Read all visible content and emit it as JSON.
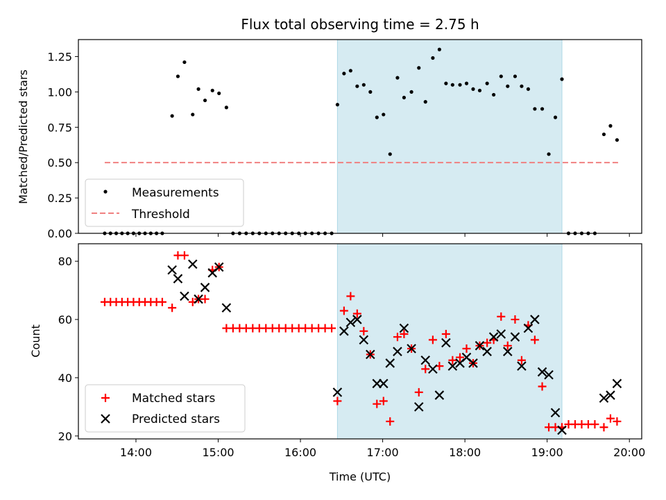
{
  "title": "Flux total observing time = 2.75 h",
  "colors": {
    "measurement": "#000000",
    "threshold": "#f08080",
    "matched": "#ff0000",
    "predicted": "#000000",
    "span": "#add8e6"
  },
  "chart_data": [
    {
      "type": "scatter",
      "panel": "top",
      "title": "Flux total observing time = 2.75 h",
      "xlabel": "",
      "ylabel": "Matched/Predicted stars",
      "xlim": [
        13.3,
        20.15
      ],
      "ylim": [
        0,
        1.37
      ],
      "yticks": [
        0.0,
        0.25,
        0.5,
        0.75,
        1.0,
        1.25
      ],
      "ytick_labels": [
        "0.00",
        "0.25",
        "0.50",
        "0.75",
        "1.00",
        "1.25"
      ],
      "legend_position": "lower-left",
      "span": [
        16.45,
        19.18
      ],
      "threshold": {
        "name": "Threshold",
        "value": 0.5,
        "x": [
          13.62,
          19.87
        ]
      },
      "series": [
        {
          "name": "Measurements",
          "x": [
            13.62,
            13.69,
            13.76,
            13.83,
            13.9,
            13.97,
            14.04,
            14.11,
            14.18,
            14.25,
            14.32,
            14.44,
            14.51,
            14.59,
            14.69,
            14.76,
            14.84,
            14.93,
            15.01,
            15.1,
            15.18,
            15.26,
            15.34,
            15.42,
            15.5,
            15.58,
            15.66,
            15.74,
            15.82,
            15.9,
            15.98,
            16.06,
            16.14,
            16.22,
            16.3,
            16.38,
            16.45,
            16.53,
            16.61,
            16.69,
            16.77,
            16.85,
            16.93,
            17.01,
            17.09,
            17.18,
            17.26,
            17.35,
            17.44,
            17.52,
            17.61,
            17.69,
            17.77,
            17.85,
            17.94,
            18.02,
            18.1,
            18.18,
            18.27,
            18.35,
            18.44,
            18.52,
            18.61,
            18.69,
            18.77,
            18.85,
            18.94,
            19.02,
            19.1,
            19.18,
            19.26,
            19.34,
            19.42,
            19.5,
            19.58,
            19.69,
            19.77,
            19.85
          ],
          "y": [
            0,
            0,
            0,
            0,
            0,
            0,
            0,
            0,
            0,
            0,
            0,
            0.83,
            1.11,
            1.21,
            0.84,
            1.02,
            0.94,
            1.01,
            0.99,
            0.89,
            0,
            0,
            0,
            0,
            0,
            0,
            0,
            0,
            0,
            0,
            0,
            0,
            0,
            0,
            0,
            0,
            0.91,
            1.13,
            1.15,
            1.04,
            1.05,
            1.0,
            0.82,
            0.84,
            0.56,
            1.1,
            0.96,
            1.0,
            1.17,
            0.93,
            1.24,
            1.3,
            1.06,
            1.05,
            1.05,
            1.06,
            1.02,
            1.01,
            1.06,
            0.98,
            1.11,
            1.04,
            1.11,
            1.04,
            1.02,
            0.88,
            0.88,
            0.56,
            0.82,
            1.09,
            0,
            0,
            0,
            0,
            0,
            0.7,
            0.76,
            0.66
          ]
        }
      ]
    },
    {
      "type": "scatter",
      "panel": "bottom",
      "xlabel": "Time (UTC)",
      "ylabel": "Count",
      "xlim": [
        13.3,
        20.15
      ],
      "ylim": [
        19,
        86
      ],
      "yticks": [
        20,
        40,
        60,
        80
      ],
      "ytick_labels": [
        "20",
        "40",
        "60",
        "80"
      ],
      "xticks": [
        14,
        15,
        16,
        17,
        18,
        19,
        20
      ],
      "xtick_labels": [
        "14:00",
        "15:00",
        "16:00",
        "17:00",
        "18:00",
        "19:00",
        "20:00"
      ],
      "legend_position": "lower-left",
      "span": [
        16.45,
        19.18
      ],
      "series": [
        {
          "name": "Matched stars",
          "marker": "+",
          "x": [
            13.62,
            13.69,
            13.76,
            13.83,
            13.9,
            13.97,
            14.04,
            14.11,
            14.18,
            14.25,
            14.32,
            14.44,
            14.51,
            14.59,
            14.69,
            14.76,
            14.84,
            14.93,
            15.01,
            15.1,
            15.18,
            15.26,
            15.34,
            15.42,
            15.5,
            15.58,
            15.66,
            15.74,
            15.82,
            15.9,
            15.98,
            16.06,
            16.14,
            16.22,
            16.3,
            16.38,
            16.45,
            16.53,
            16.61,
            16.69,
            16.77,
            16.85,
            16.93,
            17.01,
            17.09,
            17.18,
            17.26,
            17.35,
            17.44,
            17.52,
            17.61,
            17.69,
            17.77,
            17.85,
            17.94,
            18.02,
            18.1,
            18.18,
            18.27,
            18.35,
            18.44,
            18.52,
            18.61,
            18.69,
            18.77,
            18.85,
            18.94,
            19.02,
            19.1,
            19.18,
            19.26,
            19.34,
            19.42,
            19.5,
            19.58,
            19.69,
            19.77,
            19.85
          ],
          "y": [
            66,
            66,
            66,
            66,
            66,
            66,
            66,
            66,
            66,
            66,
            66,
            64,
            82,
            82,
            66,
            67,
            67,
            77,
            78,
            57,
            57,
            57,
            57,
            57,
            57,
            57,
            57,
            57,
            57,
            57,
            57,
            57,
            57,
            57,
            57,
            57,
            32,
            63,
            68,
            62,
            56,
            48,
            31,
            32,
            25,
            54,
            55,
            50,
            35,
            43,
            53,
            44,
            55,
            46,
            47,
            50,
            45,
            51,
            52,
            53,
            61,
            51,
            60,
            46,
            58,
            53,
            37,
            23,
            23,
            23,
            24,
            24,
            24,
            24,
            24,
            23,
            26,
            25
          ]
        },
        {
          "name": "Predicted stars",
          "marker": "x",
          "x": [
            14.44,
            14.51,
            14.59,
            14.69,
            14.76,
            14.84,
            14.93,
            15.01,
            15.1,
            16.45,
            16.53,
            16.61,
            16.69,
            16.77,
            16.85,
            16.93,
            17.01,
            17.09,
            17.18,
            17.26,
            17.35,
            17.44,
            17.52,
            17.61,
            17.69,
            17.77,
            17.85,
            17.94,
            18.02,
            18.1,
            18.18,
            18.27,
            18.35,
            18.44,
            18.52,
            18.61,
            18.69,
            18.77,
            18.85,
            18.94,
            19.02,
            19.1,
            19.18,
            19.69,
            19.77,
            19.85
          ],
          "y": [
            77,
            74,
            68,
            79,
            67,
            71,
            76,
            78,
            64,
            35,
            56,
            59,
            60,
            53,
            48,
            38,
            38,
            45,
            49,
            57,
            50,
            30,
            46,
            43,
            34,
            52,
            44,
            45,
            47,
            45,
            51,
            49,
            54,
            55,
            49,
            54,
            44,
            57,
            60,
            42,
            41,
            28,
            22,
            33,
            34,
            38
          ]
        }
      ]
    }
  ]
}
